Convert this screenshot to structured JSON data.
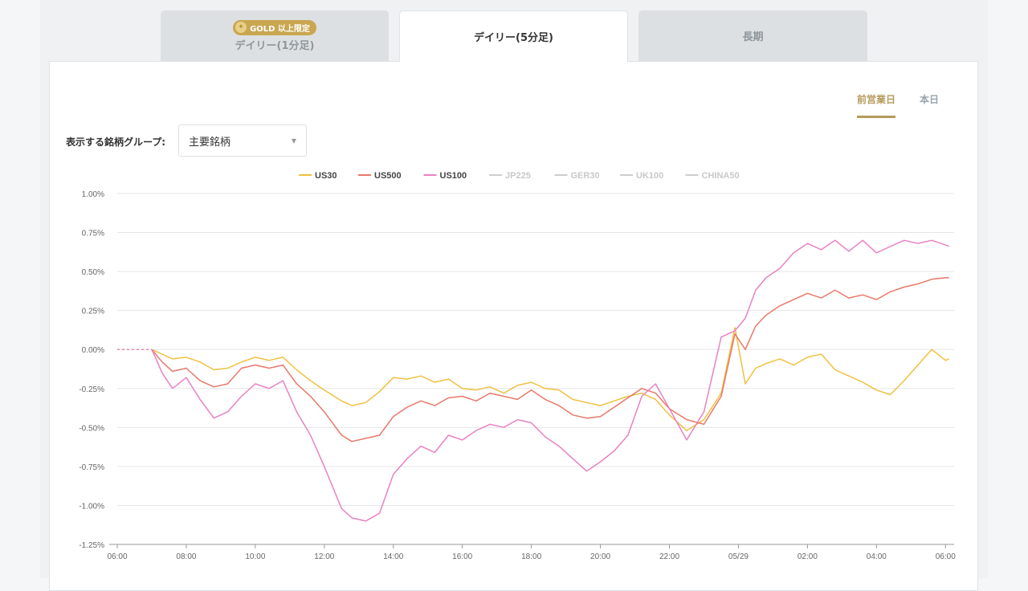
{
  "tabs": [
    {
      "label": "デイリー(1分足)",
      "badge": "GOLD 以上限定",
      "active": false
    },
    {
      "label": "デイリー(5分足)",
      "active": true
    },
    {
      "label": "長期",
      "active": false
    }
  ],
  "period_toggle": {
    "selected": "前営業日",
    "other": "本日"
  },
  "group_selector": {
    "label": "表示する銘柄グループ:",
    "value": "主要銘柄"
  },
  "colors": {
    "US30": "#f0c040",
    "US500": "#e8786a",
    "US100": "#e882c2",
    "inactive": "#cccccc",
    "accent": "#b59a5c"
  },
  "chart_data": {
    "type": "line",
    "xlabel": "",
    "ylabel": "",
    "ylim": [
      -1.25,
      1.0
    ],
    "xlim": [
      0,
      24.25
    ],
    "x_unit": "hours since 06:00",
    "yticks": [
      1.0,
      0.75,
      0.5,
      0.25,
      0.0,
      -0.25,
      -0.5,
      -0.75,
      -1.0,
      -1.25
    ],
    "ytick_labels": [
      "1.00%",
      "0.75%",
      "0.50%",
      "0.25%",
      "0.00%",
      "-0.25%",
      "-0.50%",
      "-0.75%",
      "-1.00%",
      "-1.25%"
    ],
    "xticks": [
      0,
      2,
      4,
      6,
      8,
      10,
      12,
      14,
      16,
      18,
      20,
      22,
      24
    ],
    "xtick_labels": [
      "06:00",
      "08:00",
      "10:00",
      "12:00",
      "14:00",
      "16:00",
      "18:00",
      "20:00",
      "22:00",
      "05/29",
      "02:00",
      "04:00",
      "06:00"
    ],
    "grid": true,
    "legend_position": "top",
    "legend": [
      {
        "name": "US30",
        "active": true
      },
      {
        "name": "US500",
        "active": true
      },
      {
        "name": "US100",
        "active": true
      },
      {
        "name": "JP225",
        "active": false
      },
      {
        "name": "GER30",
        "active": false
      },
      {
        "name": "UK100",
        "active": false
      },
      {
        "name": "CHINA50",
        "active": false
      }
    ],
    "series": [
      {
        "name": "US30",
        "dashed_prefix_until": 1.0,
        "x": [
          0,
          1.0,
          1.3,
          1.6,
          2.0,
          2.4,
          2.8,
          3.2,
          3.6,
          4.0,
          4.4,
          4.8,
          5.2,
          5.6,
          6.0,
          6.5,
          6.8,
          7.2,
          7.6,
          8.0,
          8.4,
          8.8,
          9.2,
          9.6,
          10.0,
          10.4,
          10.8,
          11.2,
          11.6,
          12.0,
          12.4,
          12.8,
          13.2,
          13.6,
          14.0,
          14.4,
          14.8,
          15.2,
          15.6,
          16.0,
          16.5,
          17.0,
          17.5,
          17.9,
          18.2,
          18.5,
          18.8,
          19.2,
          19.6,
          20.0,
          20.4,
          20.8,
          21.2,
          21.6,
          22.0,
          22.4,
          22.8,
          23.2,
          23.6,
          24.0,
          24.1
        ],
        "y": [
          0.0,
          0.0,
          -0.03,
          -0.06,
          -0.05,
          -0.08,
          -0.13,
          -0.12,
          -0.08,
          -0.05,
          -0.07,
          -0.05,
          -0.13,
          -0.2,
          -0.26,
          -0.33,
          -0.36,
          -0.34,
          -0.27,
          -0.18,
          -0.19,
          -0.17,
          -0.21,
          -0.19,
          -0.25,
          -0.26,
          -0.24,
          -0.28,
          -0.23,
          -0.21,
          -0.25,
          -0.26,
          -0.32,
          -0.34,
          -0.36,
          -0.33,
          -0.3,
          -0.28,
          -0.32,
          -0.42,
          -0.52,
          -0.45,
          -0.28,
          0.14,
          -0.22,
          -0.12,
          -0.09,
          -0.06,
          -0.1,
          -0.05,
          -0.03,
          -0.13,
          -0.17,
          -0.21,
          -0.26,
          -0.29,
          -0.2,
          -0.1,
          0.0,
          -0.07,
          -0.06
        ]
      },
      {
        "name": "US500",
        "dashed_prefix_until": 1.0,
        "x": [
          0,
          1.0,
          1.3,
          1.6,
          2.0,
          2.4,
          2.8,
          3.2,
          3.6,
          4.0,
          4.4,
          4.8,
          5.2,
          5.6,
          6.0,
          6.5,
          6.8,
          7.2,
          7.6,
          8.0,
          8.4,
          8.8,
          9.2,
          9.6,
          10.0,
          10.4,
          10.8,
          11.2,
          11.6,
          12.0,
          12.4,
          12.8,
          13.2,
          13.6,
          14.0,
          14.4,
          14.8,
          15.2,
          15.6,
          16.0,
          16.5,
          17.0,
          17.5,
          17.9,
          18.2,
          18.5,
          18.8,
          19.2,
          19.6,
          20.0,
          20.4,
          20.8,
          21.2,
          21.6,
          22.0,
          22.4,
          22.8,
          23.2,
          23.6,
          24.0,
          24.1
        ],
        "y": [
          0.0,
          0.0,
          -0.08,
          -0.14,
          -0.12,
          -0.2,
          -0.24,
          -0.22,
          -0.12,
          -0.1,
          -0.12,
          -0.1,
          -0.22,
          -0.3,
          -0.4,
          -0.55,
          -0.59,
          -0.57,
          -0.55,
          -0.43,
          -0.37,
          -0.33,
          -0.36,
          -0.31,
          -0.3,
          -0.33,
          -0.28,
          -0.3,
          -0.32,
          -0.26,
          -0.32,
          -0.36,
          -0.42,
          -0.44,
          -0.43,
          -0.37,
          -0.31,
          -0.25,
          -0.28,
          -0.38,
          -0.45,
          -0.48,
          -0.3,
          0.1,
          0.0,
          0.15,
          0.22,
          0.28,
          0.32,
          0.36,
          0.33,
          0.38,
          0.33,
          0.35,
          0.32,
          0.37,
          0.4,
          0.42,
          0.45,
          0.46,
          0.46
        ]
      },
      {
        "name": "US100",
        "dashed_prefix_until": 1.0,
        "x": [
          0,
          1.0,
          1.3,
          1.6,
          2.0,
          2.4,
          2.8,
          3.2,
          3.6,
          4.0,
          4.4,
          4.8,
          5.2,
          5.6,
          6.0,
          6.5,
          6.8,
          7.2,
          7.6,
          8.0,
          8.4,
          8.8,
          9.2,
          9.6,
          10.0,
          10.4,
          10.8,
          11.2,
          11.6,
          12.0,
          12.4,
          12.8,
          13.2,
          13.6,
          14.0,
          14.4,
          14.8,
          15.2,
          15.6,
          16.0,
          16.5,
          17.0,
          17.5,
          17.9,
          18.2,
          18.5,
          18.8,
          19.2,
          19.6,
          20.0,
          20.4,
          20.8,
          21.2,
          21.6,
          22.0,
          22.4,
          22.8,
          23.2,
          23.6,
          24.0,
          24.1
        ],
        "y": [
          0.0,
          0.0,
          -0.15,
          -0.25,
          -0.18,
          -0.32,
          -0.44,
          -0.4,
          -0.3,
          -0.22,
          -0.25,
          -0.2,
          -0.4,
          -0.55,
          -0.75,
          -1.02,
          -1.08,
          -1.1,
          -1.05,
          -0.8,
          -0.7,
          -0.62,
          -0.66,
          -0.55,
          -0.58,
          -0.52,
          -0.48,
          -0.5,
          -0.45,
          -0.47,
          -0.56,
          -0.62,
          -0.7,
          -0.78,
          -0.72,
          -0.65,
          -0.55,
          -0.3,
          -0.22,
          -0.38,
          -0.58,
          -0.4,
          0.08,
          0.12,
          0.2,
          0.38,
          0.46,
          0.52,
          0.62,
          0.68,
          0.64,
          0.7,
          0.63,
          0.7,
          0.62,
          0.66,
          0.7,
          0.68,
          0.7,
          0.67,
          0.66
        ]
      },
      {
        "name": "JP225",
        "x": [],
        "y": []
      },
      {
        "name": "GER30",
        "x": [],
        "y": []
      },
      {
        "name": "UK100",
        "x": [],
        "y": []
      },
      {
        "name": "CHINA50",
        "x": [],
        "y": []
      }
    ]
  }
}
